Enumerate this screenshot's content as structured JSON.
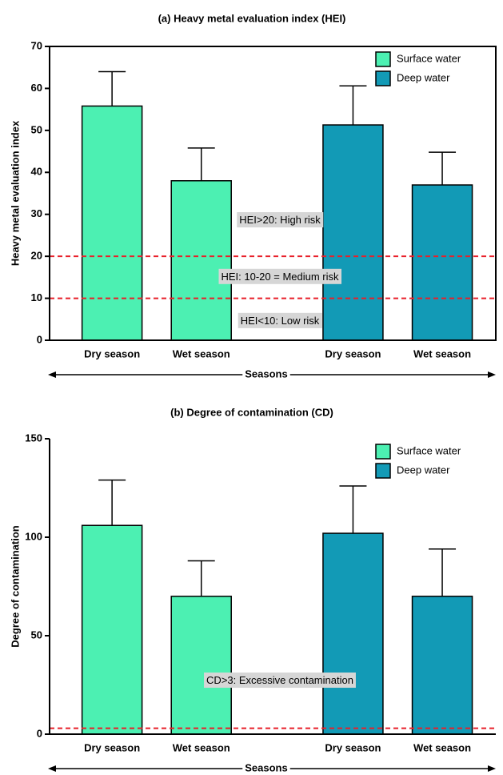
{
  "chart_data": [
    {
      "type": "bar",
      "title": "(a) Heavy metal evaluation index (HEI)",
      "xlabel": "Seasons",
      "ylabel": "Heavy metal evaluation index",
      "categories": [
        "Dry season",
        "Wet season",
        "Dry season",
        "Wet season"
      ],
      "series": [
        {
          "name": "Surface water",
          "color": "#4cf0b2",
          "values": [
            55.8,
            38,
            null,
            null
          ],
          "errors": [
            8.2,
            7.8,
            null,
            null
          ]
        },
        {
          "name": "Deep water",
          "color": "#129ab6",
          "values": [
            null,
            null,
            51.3,
            37
          ],
          "errors": [
            null,
            null,
            9.3,
            7.8
          ]
        }
      ],
      "ylim": [
        0,
        70
      ],
      "yticks": [
        0,
        10,
        20,
        30,
        40,
        50,
        60,
        70
      ],
      "hlines": [
        20,
        10
      ],
      "annotations": [
        {
          "text": "HEI>20: High risk",
          "y": 28.5
        },
        {
          "text": "HEI: 10-20 = Medium risk",
          "y": 15
        },
        {
          "text": "HEI<10: Low risk",
          "y": 4.5
        }
      ],
      "legend": "upper right"
    },
    {
      "type": "bar",
      "title": "(b) Degree of contamination (CD)",
      "xlabel": "Seasons",
      "ylabel": "Degree of contamination",
      "categories": [
        "Dry season",
        "Wet season",
        "Dry season",
        "Wet season"
      ],
      "series": [
        {
          "name": "Surface water",
          "color": "#4cf0b2",
          "values": [
            106,
            70,
            null,
            null
          ],
          "errors": [
            23,
            18,
            null,
            null
          ]
        },
        {
          "name": "Deep water",
          "color": "#129ab6",
          "values": [
            null,
            null,
            102,
            70
          ],
          "errors": [
            null,
            null,
            24,
            24
          ]
        }
      ],
      "ylim": [
        0,
        150
      ],
      "yticks": [
        0,
        50,
        100,
        150
      ],
      "hlines": [
        3
      ],
      "annotations": [
        {
          "text": "CD>3: Excessive contamination",
          "y": 27
        }
      ],
      "legend": "upper right"
    }
  ]
}
